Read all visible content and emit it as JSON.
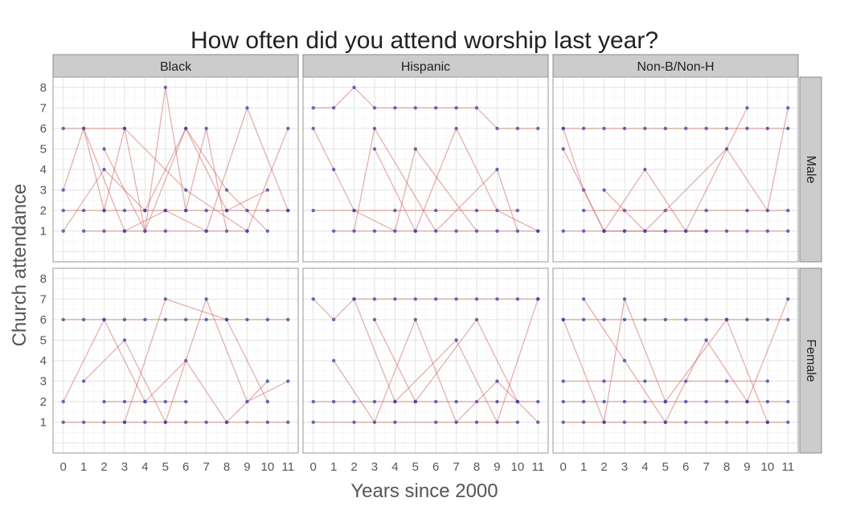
{
  "chart_data": {
    "type": "line",
    "title": "How often did you attend worship last year?",
    "xlabel": "Years since 2000",
    "ylabel": "Church attendance",
    "xlim": [
      -0.5,
      11.5
    ],
    "ylim": [
      -0.5,
      8.5
    ],
    "x_ticks": [
      "0",
      "1",
      "2",
      "3",
      "4",
      "5",
      "6",
      "7",
      "8",
      "9",
      "10",
      "11"
    ],
    "y_ticks": [
      "1",
      "2",
      "3",
      "4",
      "5",
      "6",
      "7",
      "8"
    ],
    "grid": true,
    "line_color": "#cd5c5c",
    "point_color": "#3f3f9f",
    "panel_strip_color": "#cccccc",
    "facet_columns": [
      "Black",
      "Hispanic",
      "Non-B/Non-H"
    ],
    "facet_rows": [
      "Male",
      "Female"
    ],
    "panels": [
      {
        "column": "Black",
        "row": "Male",
        "series": [
          {
            "x": [
              0,
              1,
              2,
              3,
              4,
              5,
              6,
              7,
              8
            ],
            "values": [
              3,
              6,
              2,
              6,
              1,
              8,
              2,
              6,
              1
            ]
          },
          {
            "x": [
              0,
              2,
              4,
              6,
              8,
              10
            ],
            "values": [
              1,
              4,
              2,
              6,
              3,
              1
            ]
          },
          {
            "x": [
              1,
              3,
              5,
              7,
              9,
              11
            ],
            "values": [
              6,
              1,
              2,
              1,
              7,
              2
            ]
          },
          {
            "x": [
              0,
              1,
              2,
              3,
              4,
              5,
              6,
              7,
              8,
              9,
              10,
              11
            ],
            "values": [
              2,
              2,
              2,
              2,
              2,
              2,
              2,
              2,
              2,
              2,
              2,
              2
            ]
          },
          {
            "x": [
              2,
              4,
              6,
              8,
              10
            ],
            "values": [
              5,
              1,
              6,
              2,
              3
            ]
          },
          {
            "x": [
              0,
              3,
              6,
              9,
              11
            ],
            "values": [
              6,
              6,
              3,
              1,
              6
            ]
          },
          {
            "x": [
              1,
              2,
              3,
              5,
              7,
              9
            ],
            "values": [
              1,
              1,
              1,
              1,
              1,
              1
            ]
          }
        ]
      },
      {
        "column": "Hispanic",
        "row": "Male",
        "series": [
          {
            "x": [
              0,
              1,
              2,
              3,
              4,
              5,
              6,
              7,
              8,
              9,
              10,
              11
            ],
            "values": [
              7,
              7,
              8,
              7,
              7,
              7,
              7,
              7,
              7,
              6,
              6,
              6
            ]
          },
          {
            "x": [
              0,
              2,
              4,
              6,
              8,
              10
            ],
            "values": [
              2,
              2,
              2,
              2,
              2,
              2
            ]
          },
          {
            "x": [
              1,
              3,
              5,
              7,
              9,
              11
            ],
            "values": [
              1,
              1,
              1,
              1,
              1,
              1
            ]
          },
          {
            "x": [
              0,
              1,
              2,
              4,
              5,
              8
            ],
            "values": [
              6,
              4,
              2,
              1,
              5,
              1
            ]
          },
          {
            "x": [
              2,
              3,
              6,
              9,
              10
            ],
            "values": [
              1,
              6,
              1,
              4,
              1
            ]
          },
          {
            "x": [
              3,
              5,
              7,
              9,
              11
            ],
            "values": [
              5,
              1,
              6,
              2,
              1
            ]
          }
        ]
      },
      {
        "column": "Non-B/Non-H",
        "row": "Male",
        "series": [
          {
            "x": [
              0,
              1,
              2,
              3,
              4,
              5,
              6,
              7,
              8,
              9,
              10,
              11
            ],
            "values": [
              6,
              6,
              6,
              6,
              6,
              6,
              6,
              6,
              6,
              6,
              6,
              6
            ]
          },
          {
            "x": [
              0,
              1,
              2,
              3,
              4,
              5,
              6,
              7,
              8,
              9,
              10,
              11
            ],
            "values": [
              1,
              1,
              1,
              1,
              1,
              1,
              1,
              1,
              1,
              1,
              1,
              1
            ]
          },
          {
            "x": [
              0,
              1,
              2,
              3,
              5,
              7
            ],
            "values": [
              6,
              3,
              1,
              1,
              1,
              1
            ]
          },
          {
            "x": [
              1,
              3,
              5,
              7,
              9,
              11
            ],
            "values": [
              2,
              2,
              2,
              2,
              2,
              2
            ]
          },
          {
            "x": [
              0,
              2,
              4,
              6,
              9
            ],
            "values": [
              5,
              1,
              4,
              1,
              7
            ]
          },
          {
            "x": [
              2,
              4,
              8,
              10,
              11
            ],
            "values": [
              3,
              1,
              5,
              2,
              7
            ]
          }
        ]
      },
      {
        "column": "Black",
        "row": "Female",
        "series": [
          {
            "x": [
              0,
              1,
              2,
              3,
              4,
              5,
              6,
              7,
              8,
              9,
              10,
              11
            ],
            "values": [
              6,
              6,
              6,
              6,
              6,
              6,
              6,
              6,
              6,
              6,
              6,
              6
            ]
          },
          {
            "x": [
              0,
              1,
              2,
              3,
              4,
              5,
              6,
              7,
              8,
              9,
              10,
              11
            ],
            "values": [
              1,
              1,
              1,
              1,
              1,
              1,
              1,
              1,
              1,
              1,
              1,
              1
            ]
          },
          {
            "x": [
              0,
              2,
              4,
              6,
              8,
              10
            ],
            "values": [
              2,
              6,
              2,
              4,
              1,
              3
            ]
          },
          {
            "x": [
              1,
              3,
              5,
              7,
              9,
              11
            ],
            "values": [
              3,
              5,
              1,
              7,
              2,
              3
            ]
          },
          {
            "x": [
              2,
              3,
              4,
              5,
              6
            ],
            "values": [
              2,
              2,
              2,
              2,
              2
            ]
          },
          {
            "x": [
              3,
              5,
              8,
              10
            ],
            "values": [
              1,
              7,
              6,
              2
            ]
          }
        ]
      },
      {
        "column": "Hispanic",
        "row": "Female",
        "series": [
          {
            "x": [
              0,
              1,
              2,
              3,
              4,
              5,
              6,
              7,
              8,
              9,
              10,
              11
            ],
            "values": [
              7,
              6,
              7,
              7,
              7,
              7,
              7,
              7,
              7,
              7,
              7,
              7
            ]
          },
          {
            "x": [
              0,
              1,
              2,
              3,
              4,
              5,
              6,
              7,
              8,
              9,
              10,
              11
            ],
            "values": [
              2,
              2,
              2,
              2,
              2,
              2,
              2,
              2,
              2,
              2,
              2,
              2
            ]
          },
          {
            "x": [
              0,
              2,
              4,
              6,
              8,
              10
            ],
            "values": [
              1,
              1,
              1,
              1,
              1,
              1
            ]
          },
          {
            "x": [
              1,
              3,
              5,
              7,
              9,
              11
            ],
            "values": [
              4,
              1,
              6,
              1,
              3,
              1
            ]
          },
          {
            "x": [
              2,
              4,
              7,
              9,
              11
            ],
            "values": [
              7,
              2,
              5,
              1,
              7
            ]
          },
          {
            "x": [
              3,
              5,
              8,
              10
            ],
            "values": [
              6,
              2,
              6,
              2
            ]
          }
        ]
      },
      {
        "column": "Non-B/Non-H",
        "row": "Female",
        "series": [
          {
            "x": [
              0,
              1,
              2,
              3,
              4,
              5,
              6,
              7,
              8,
              9,
              10,
              11
            ],
            "values": [
              6,
              6,
              6,
              6,
              6,
              6,
              6,
              6,
              6,
              6,
              6,
              6
            ]
          },
          {
            "x": [
              0,
              1,
              2,
              3,
              4,
              5,
              6,
              7,
              8,
              9,
              10,
              11
            ],
            "values": [
              1,
              1,
              1,
              1,
              1,
              1,
              1,
              1,
              1,
              1,
              1,
              1
            ]
          },
          {
            "x": [
              0,
              1,
              2,
              3,
              4,
              5,
              6,
              7,
              8,
              9,
              10,
              11
            ],
            "values": [
              2,
              2,
              2,
              2,
              2,
              2,
              2,
              2,
              2,
              2,
              2,
              2
            ]
          },
          {
            "x": [
              0,
              2,
              4,
              6,
              8,
              10
            ],
            "values": [
              3,
              3,
              3,
              3,
              3,
              3
            ]
          },
          {
            "x": [
              1,
              3,
              5,
              7,
              9,
              11
            ],
            "values": [
              7,
              4,
              1,
              5,
              2,
              7
            ]
          },
          {
            "x": [
              0,
              2,
              3,
              5,
              8,
              10
            ],
            "values": [
              6,
              1,
              7,
              2,
              6,
              1
            ]
          }
        ]
      }
    ]
  }
}
